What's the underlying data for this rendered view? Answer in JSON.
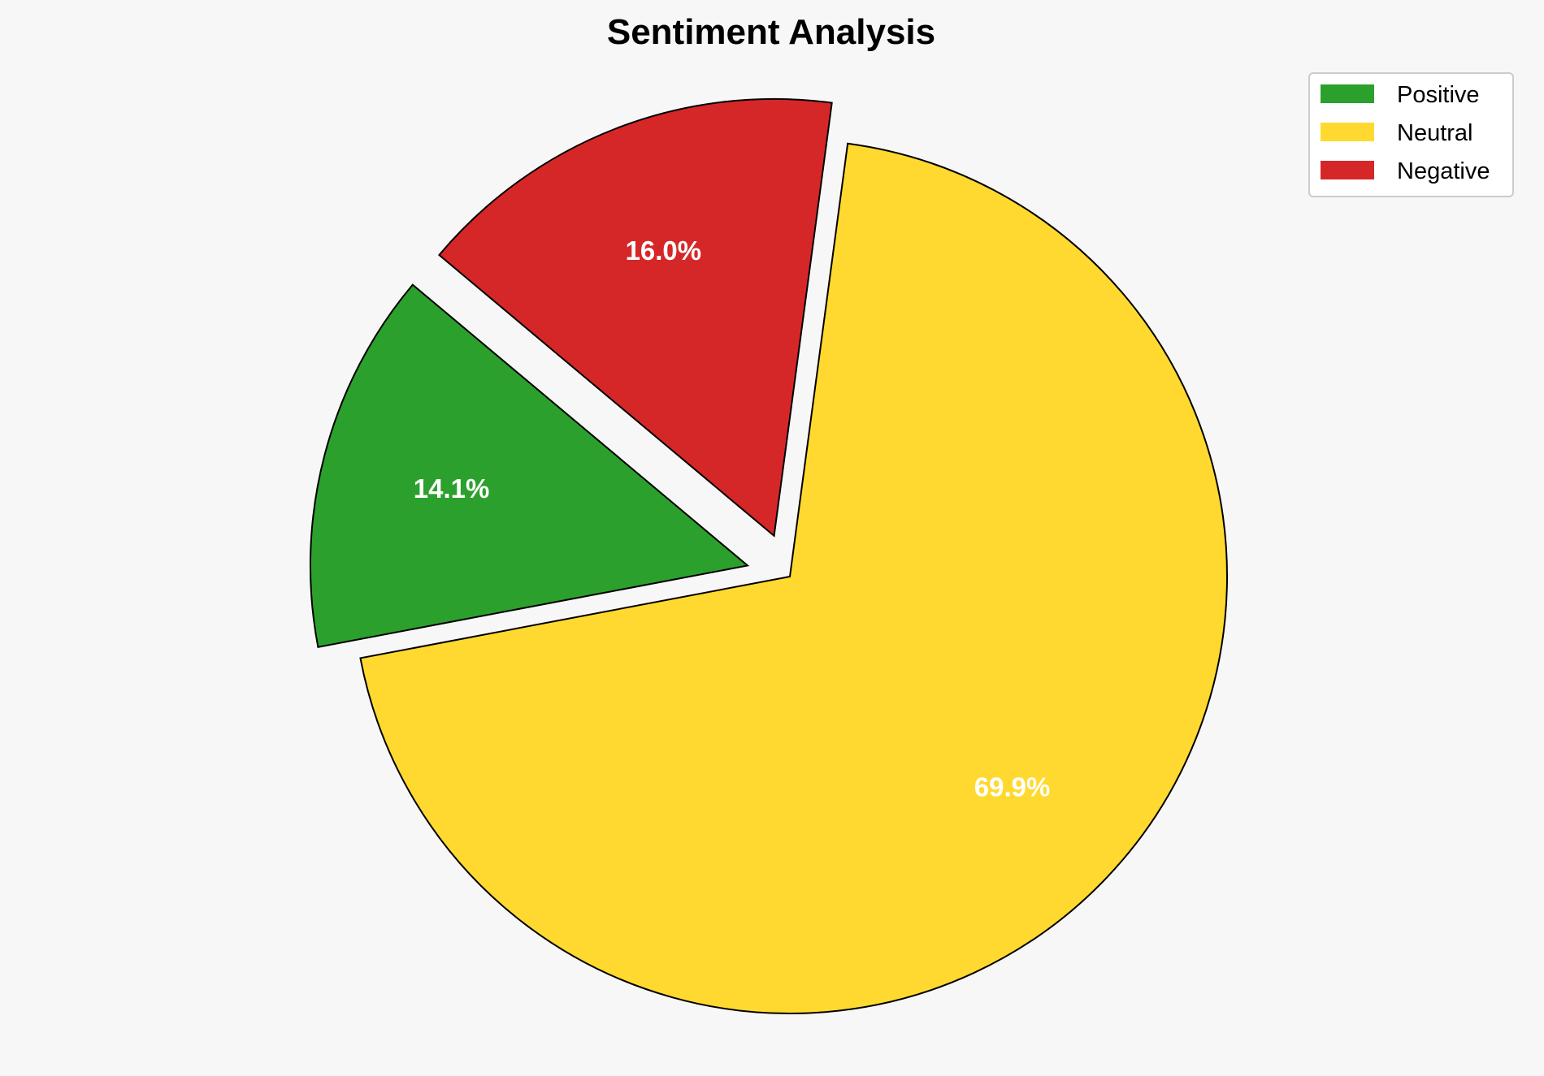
{
  "chart_data": {
    "type": "pie",
    "title": "Sentiment Analysis",
    "categories": [
      "Positive",
      "Neutral",
      "Negative"
    ],
    "values": [
      14.1,
      69.9,
      16.0
    ],
    "labels": [
      "14.1%",
      "69.9%",
      "16.0%"
    ],
    "colors": [
      "#2ca02c",
      "#ffd92f",
      "#d62728"
    ],
    "explode": [
      0.1,
      0,
      0.1
    ],
    "start_angle": 140,
    "direction": "counterclockwise",
    "legend": {
      "placement": "top-right",
      "entries": [
        "Positive",
        "Neutral",
        "Negative"
      ]
    },
    "background": "#f7f7f7"
  }
}
